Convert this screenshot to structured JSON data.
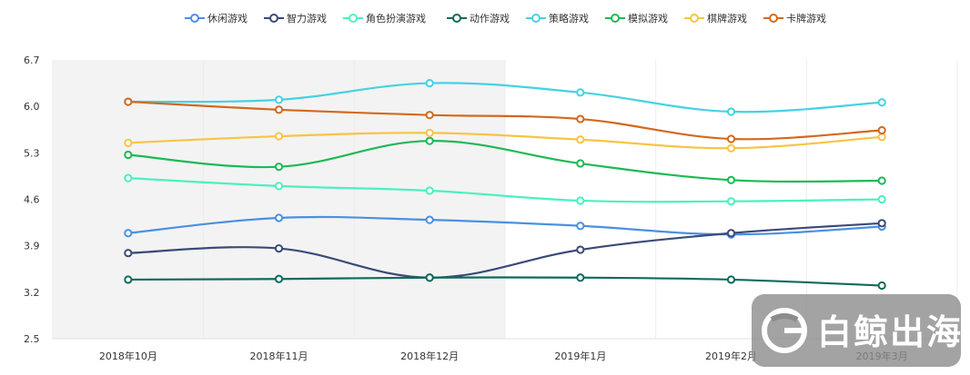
{
  "chart_data": {
    "type": "line",
    "categories": [
      "2018年10月",
      "2018年11月",
      "2018年12月",
      "2019年1月",
      "2019年2月",
      "2019年3月"
    ],
    "y_ticks": [
      "2.5",
      "3.2",
      "3.9",
      "4.6",
      "5.3",
      "6.0",
      "6.7"
    ],
    "ylim": [
      2.5,
      6.7
    ],
    "grid": "vertical",
    "legend_position": "top",
    "shaded_region": {
      "from": "2018年10月",
      "to": "2018年12月"
    },
    "series": [
      {
        "name": "休闲游戏",
        "color": "#4a90e2",
        "values": [
          4.09,
          4.32,
          4.29,
          4.2,
          4.07,
          4.19
        ]
      },
      {
        "name": "智力游戏",
        "color": "#3b4a78",
        "values": [
          3.79,
          3.86,
          3.42,
          3.84,
          4.09,
          4.24
        ]
      },
      {
        "name": "角色扮演游戏",
        "color": "#4cf0c0",
        "values": [
          4.92,
          4.8,
          4.73,
          4.58,
          4.57,
          4.6
        ]
      },
      {
        "name": "动作游戏",
        "color": "#0f6b5c",
        "values": [
          3.39,
          3.4,
          3.42,
          3.42,
          3.39,
          3.3
        ]
      },
      {
        "name": "策略游戏",
        "color": "#45d2e2",
        "values": [
          6.07,
          6.1,
          6.35,
          6.21,
          5.92,
          6.06
        ]
      },
      {
        "name": "模拟游戏",
        "color": "#1db954",
        "values": [
          5.27,
          5.09,
          5.48,
          5.14,
          4.89,
          4.88
        ]
      },
      {
        "name": "棋牌游戏",
        "color": "#f7c443",
        "values": [
          5.45,
          5.55,
          5.6,
          5.5,
          5.37,
          5.54
        ]
      },
      {
        "name": "卡牌游戏",
        "color": "#d2691e",
        "values": [
          6.07,
          5.95,
          5.87,
          5.81,
          5.51,
          5.64
        ]
      }
    ]
  },
  "watermark": {
    "text": "白鲸出海",
    "icon": "whale-logo-icon"
  }
}
